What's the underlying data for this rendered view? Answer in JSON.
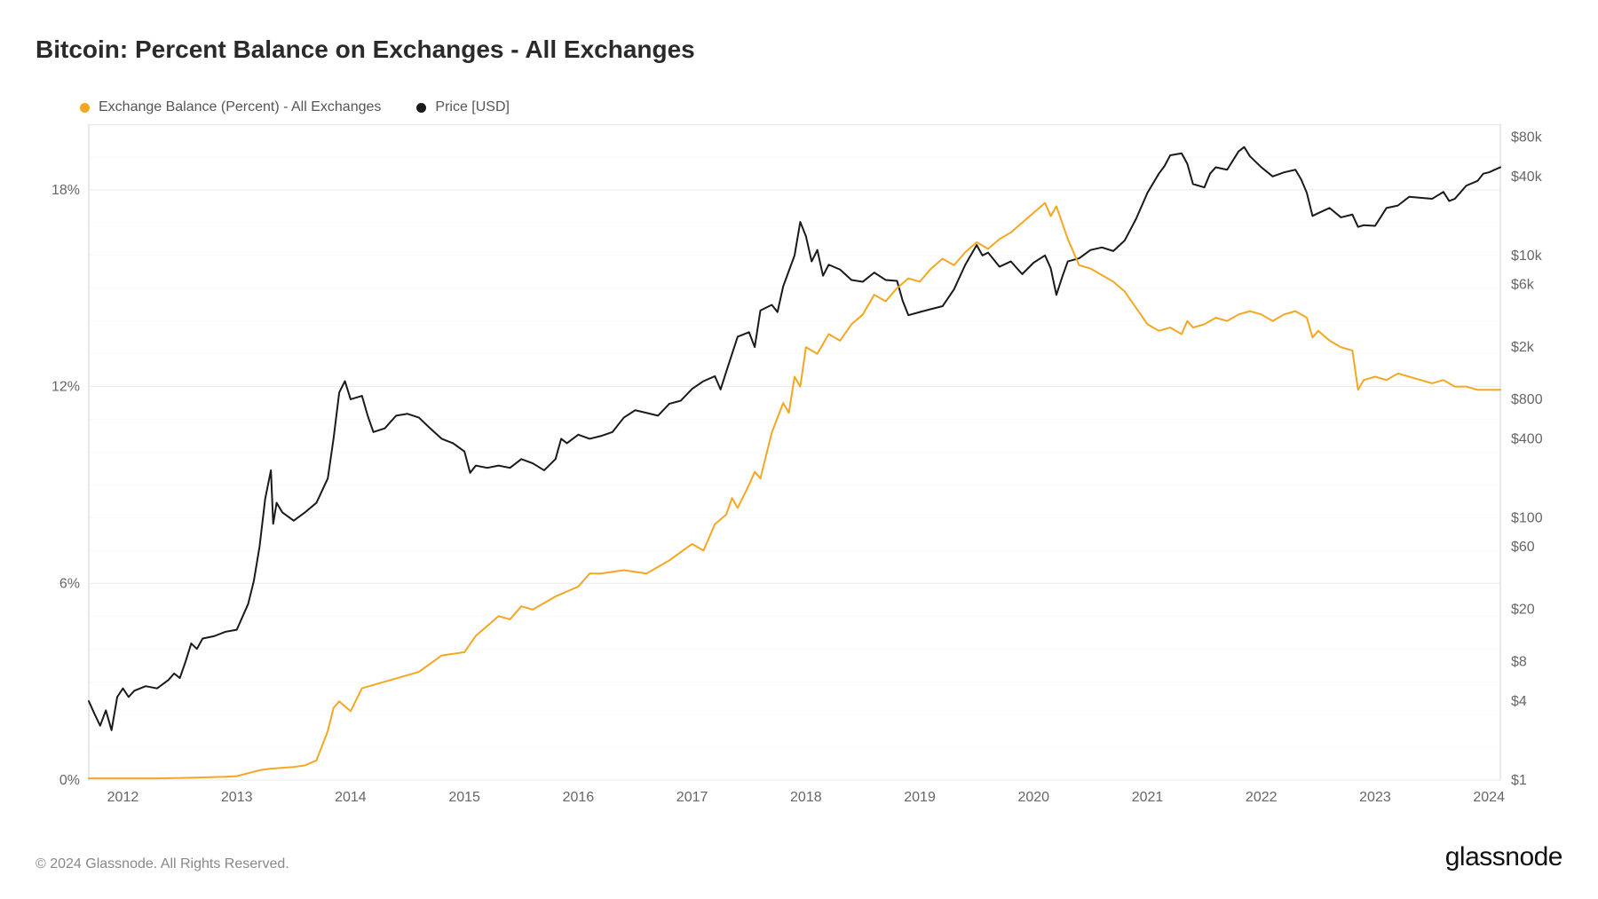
{
  "title": "Bitcoin: Percent Balance on Exchanges - All Exchanges",
  "copyright": "© 2024 Glassnode. All Rights Reserved.",
  "brand": "glassnode",
  "legend": {
    "balance": {
      "label": "Exchange Balance (Percent) - All Exchanges",
      "color": "#f5a623"
    },
    "price": {
      "label": "Price [USD]",
      "color": "#1a1a1a"
    }
  },
  "chart": {
    "background": "#ffffff",
    "grid_color": "#eaeaea",
    "border_color": "#d0d0d0",
    "font_color": "#666",
    "line_width": 2,
    "x_axis": {
      "domain": [
        2011.7,
        2024.1
      ],
      "ticks": [
        2012,
        2013,
        2014,
        2015,
        2016,
        2017,
        2018,
        2019,
        2020,
        2021,
        2022,
        2023,
        2024
      ],
      "labels": [
        "2012",
        "2013",
        "2014",
        "2015",
        "2016",
        "2017",
        "2018",
        "2019",
        "2020",
        "2021",
        "2022",
        "2023",
        "2024"
      ]
    },
    "left_axis": {
      "scale": "linear",
      "domain": [
        0,
        20
      ],
      "ticks": [
        0,
        6,
        12,
        18
      ],
      "labels": [
        "0%",
        "6%",
        "12%",
        "18%"
      ]
    },
    "right_axis": {
      "scale": "log",
      "domain": [
        1,
        100000
      ],
      "ticks": [
        1,
        4,
        8,
        20,
        60,
        100,
        400,
        800,
        2000,
        6000,
        10000,
        40000,
        80000
      ],
      "labels": [
        "$1",
        "$4",
        "$8",
        "$20",
        "$60",
        "$100",
        "$400",
        "$800",
        "$2k",
        "$6k",
        "$10k",
        "$40k",
        "$80k"
      ]
    },
    "series": {
      "balance": {
        "color": "#f5a623",
        "points": [
          [
            2011.7,
            0.05
          ],
          [
            2012.0,
            0.05
          ],
          [
            2012.3,
            0.05
          ],
          [
            2012.6,
            0.07
          ],
          [
            2012.9,
            0.1
          ],
          [
            2013.0,
            0.12
          ],
          [
            2013.2,
            0.3
          ],
          [
            2013.3,
            0.35
          ],
          [
            2013.5,
            0.4
          ],
          [
            2013.6,
            0.45
          ],
          [
            2013.7,
            0.6
          ],
          [
            2013.8,
            1.5
          ],
          [
            2013.85,
            2.2
          ],
          [
            2013.9,
            2.4
          ],
          [
            2014.0,
            2.1
          ],
          [
            2014.1,
            2.8
          ],
          [
            2014.2,
            2.9
          ],
          [
            2014.4,
            3.1
          ],
          [
            2014.6,
            3.3
          ],
          [
            2014.8,
            3.8
          ],
          [
            2015.0,
            3.9
          ],
          [
            2015.1,
            4.4
          ],
          [
            2015.2,
            4.7
          ],
          [
            2015.3,
            5.0
          ],
          [
            2015.4,
            4.9
          ],
          [
            2015.5,
            5.3
          ],
          [
            2015.6,
            5.2
          ],
          [
            2015.8,
            5.6
          ],
          [
            2016.0,
            5.9
          ],
          [
            2016.1,
            6.3
          ],
          [
            2016.2,
            6.3
          ],
          [
            2016.4,
            6.4
          ],
          [
            2016.6,
            6.3
          ],
          [
            2016.8,
            6.7
          ],
          [
            2017.0,
            7.2
          ],
          [
            2017.1,
            7.0
          ],
          [
            2017.2,
            7.8
          ],
          [
            2017.3,
            8.1
          ],
          [
            2017.35,
            8.6
          ],
          [
            2017.4,
            8.3
          ],
          [
            2017.5,
            9.0
          ],
          [
            2017.55,
            9.4
          ],
          [
            2017.6,
            9.2
          ],
          [
            2017.7,
            10.6
          ],
          [
            2017.8,
            11.5
          ],
          [
            2017.85,
            11.2
          ],
          [
            2017.9,
            12.3
          ],
          [
            2017.95,
            12.0
          ],
          [
            2018.0,
            13.2
          ],
          [
            2018.1,
            13.0
          ],
          [
            2018.2,
            13.6
          ],
          [
            2018.3,
            13.4
          ],
          [
            2018.4,
            13.9
          ],
          [
            2018.5,
            14.2
          ],
          [
            2018.6,
            14.8
          ],
          [
            2018.7,
            14.6
          ],
          [
            2018.8,
            15.0
          ],
          [
            2018.9,
            15.3
          ],
          [
            2019.0,
            15.2
          ],
          [
            2019.1,
            15.6
          ],
          [
            2019.2,
            15.9
          ],
          [
            2019.3,
            15.7
          ],
          [
            2019.4,
            16.1
          ],
          [
            2019.5,
            16.4
          ],
          [
            2019.6,
            16.2
          ],
          [
            2019.7,
            16.5
          ],
          [
            2019.8,
            16.7
          ],
          [
            2019.9,
            17.0
          ],
          [
            2020.0,
            17.3
          ],
          [
            2020.1,
            17.6
          ],
          [
            2020.15,
            17.2
          ],
          [
            2020.2,
            17.5
          ],
          [
            2020.3,
            16.5
          ],
          [
            2020.4,
            15.7
          ],
          [
            2020.5,
            15.6
          ],
          [
            2020.6,
            15.4
          ],
          [
            2020.7,
            15.2
          ],
          [
            2020.8,
            14.9
          ],
          [
            2020.9,
            14.4
          ],
          [
            2021.0,
            13.9
          ],
          [
            2021.1,
            13.7
          ],
          [
            2021.2,
            13.8
          ],
          [
            2021.3,
            13.6
          ],
          [
            2021.35,
            14.0
          ],
          [
            2021.4,
            13.8
          ],
          [
            2021.5,
            13.9
          ],
          [
            2021.6,
            14.1
          ],
          [
            2021.7,
            14.0
          ],
          [
            2021.8,
            14.2
          ],
          [
            2021.9,
            14.3
          ],
          [
            2022.0,
            14.2
          ],
          [
            2022.1,
            14.0
          ],
          [
            2022.2,
            14.2
          ],
          [
            2022.3,
            14.3
          ],
          [
            2022.4,
            14.1
          ],
          [
            2022.45,
            13.5
          ],
          [
            2022.5,
            13.7
          ],
          [
            2022.6,
            13.4
          ],
          [
            2022.7,
            13.2
          ],
          [
            2022.8,
            13.1
          ],
          [
            2022.85,
            11.9
          ],
          [
            2022.9,
            12.2
          ],
          [
            2023.0,
            12.3
          ],
          [
            2023.1,
            12.2
          ],
          [
            2023.2,
            12.4
          ],
          [
            2023.3,
            12.3
          ],
          [
            2023.4,
            12.2
          ],
          [
            2023.5,
            12.1
          ],
          [
            2023.6,
            12.2
          ],
          [
            2023.7,
            12.0
          ],
          [
            2023.8,
            12.0
          ],
          [
            2023.9,
            11.9
          ],
          [
            2024.0,
            11.9
          ],
          [
            2024.1,
            11.9
          ]
        ]
      },
      "price": {
        "color": "#1a1a1a",
        "points": [
          [
            2011.7,
            4.0
          ],
          [
            2011.75,
            3.2
          ],
          [
            2011.8,
            2.6
          ],
          [
            2011.85,
            3.4
          ],
          [
            2011.9,
            2.4
          ],
          [
            2011.95,
            4.3
          ],
          [
            2012.0,
            5.0
          ],
          [
            2012.05,
            4.3
          ],
          [
            2012.1,
            4.8
          ],
          [
            2012.2,
            5.2
          ],
          [
            2012.3,
            5.0
          ],
          [
            2012.4,
            5.8
          ],
          [
            2012.45,
            6.5
          ],
          [
            2012.5,
            6.0
          ],
          [
            2012.55,
            8.0
          ],
          [
            2012.6,
            11.0
          ],
          [
            2012.65,
            10.0
          ],
          [
            2012.7,
            12.0
          ],
          [
            2012.8,
            12.5
          ],
          [
            2012.9,
            13.5
          ],
          [
            2013.0,
            14.0
          ],
          [
            2013.1,
            22.0
          ],
          [
            2013.15,
            33.0
          ],
          [
            2013.2,
            60.0
          ],
          [
            2013.25,
            140.0
          ],
          [
            2013.3,
            230.0
          ],
          [
            2013.32,
            90.0
          ],
          [
            2013.35,
            130.0
          ],
          [
            2013.4,
            110.0
          ],
          [
            2013.5,
            95.0
          ],
          [
            2013.6,
            110.0
          ],
          [
            2013.7,
            130.0
          ],
          [
            2013.8,
            200.0
          ],
          [
            2013.85,
            400.0
          ],
          [
            2013.9,
            900.0
          ],
          [
            2013.95,
            1100.0
          ],
          [
            2014.0,
            800.0
          ],
          [
            2014.1,
            850.0
          ],
          [
            2014.15,
            600.0
          ],
          [
            2014.2,
            450.0
          ],
          [
            2014.3,
            480.0
          ],
          [
            2014.4,
            600.0
          ],
          [
            2014.5,
            620.0
          ],
          [
            2014.6,
            580.0
          ],
          [
            2014.7,
            480.0
          ],
          [
            2014.8,
            400.0
          ],
          [
            2014.9,
            370.0
          ],
          [
            2015.0,
            320.0
          ],
          [
            2015.05,
            220.0
          ],
          [
            2015.1,
            250.0
          ],
          [
            2015.2,
            240.0
          ],
          [
            2015.3,
            250.0
          ],
          [
            2015.4,
            240.0
          ],
          [
            2015.5,
            280.0
          ],
          [
            2015.6,
            260.0
          ],
          [
            2015.7,
            230.0
          ],
          [
            2015.8,
            280.0
          ],
          [
            2015.85,
            400.0
          ],
          [
            2015.9,
            370.0
          ],
          [
            2016.0,
            430.0
          ],
          [
            2016.1,
            400.0
          ],
          [
            2016.2,
            420.0
          ],
          [
            2016.3,
            450.0
          ],
          [
            2016.4,
            580.0
          ],
          [
            2016.5,
            660.0
          ],
          [
            2016.6,
            630.0
          ],
          [
            2016.7,
            600.0
          ],
          [
            2016.8,
            740.0
          ],
          [
            2016.9,
            780.0
          ],
          [
            2017.0,
            960.0
          ],
          [
            2017.1,
            1100.0
          ],
          [
            2017.2,
            1200.0
          ],
          [
            2017.25,
            950.0
          ],
          [
            2017.3,
            1300.0
          ],
          [
            2017.4,
            2400.0
          ],
          [
            2017.5,
            2600.0
          ],
          [
            2017.55,
            2000.0
          ],
          [
            2017.6,
            3800.0
          ],
          [
            2017.7,
            4200.0
          ],
          [
            2017.75,
            3700.0
          ],
          [
            2017.8,
            5800.0
          ],
          [
            2017.9,
            10000.0
          ],
          [
            2017.95,
            18000.0
          ],
          [
            2018.0,
            14000.0
          ],
          [
            2018.05,
            9000.0
          ],
          [
            2018.1,
            11000.0
          ],
          [
            2018.15,
            7000.0
          ],
          [
            2018.2,
            8500.0
          ],
          [
            2018.3,
            7800.0
          ],
          [
            2018.4,
            6500.0
          ],
          [
            2018.5,
            6300.0
          ],
          [
            2018.6,
            7400.0
          ],
          [
            2018.7,
            6500.0
          ],
          [
            2018.8,
            6400.0
          ],
          [
            2018.85,
            4500.0
          ],
          [
            2018.9,
            3500.0
          ],
          [
            2019.0,
            3700.0
          ],
          [
            2019.1,
            3900.0
          ],
          [
            2019.2,
            4100.0
          ],
          [
            2019.3,
            5500.0
          ],
          [
            2019.4,
            8500.0
          ],
          [
            2019.5,
            12000.0
          ],
          [
            2019.55,
            10000.0
          ],
          [
            2019.6,
            10500.0
          ],
          [
            2019.7,
            8200.0
          ],
          [
            2019.8,
            9000.0
          ],
          [
            2019.9,
            7200.0
          ],
          [
            2020.0,
            8800.0
          ],
          [
            2020.1,
            10000.0
          ],
          [
            2020.15,
            8000.0
          ],
          [
            2020.2,
            5000.0
          ],
          [
            2020.25,
            6800.0
          ],
          [
            2020.3,
            9000.0
          ],
          [
            2020.4,
            9500.0
          ],
          [
            2020.5,
            11000.0
          ],
          [
            2020.6,
            11500.0
          ],
          [
            2020.7,
            10800.0
          ],
          [
            2020.8,
            13000.0
          ],
          [
            2020.9,
            19000.0
          ],
          [
            2021.0,
            30000.0
          ],
          [
            2021.1,
            42000.0
          ],
          [
            2021.15,
            48000.0
          ],
          [
            2021.2,
            58000.0
          ],
          [
            2021.3,
            60000.0
          ],
          [
            2021.35,
            50000.0
          ],
          [
            2021.4,
            35000.0
          ],
          [
            2021.5,
            33000.0
          ],
          [
            2021.55,
            42000.0
          ],
          [
            2021.6,
            47000.0
          ],
          [
            2021.7,
            45000.0
          ],
          [
            2021.8,
            62000.0
          ],
          [
            2021.85,
            67000.0
          ],
          [
            2021.9,
            57000.0
          ],
          [
            2022.0,
            47000.0
          ],
          [
            2022.1,
            40000.0
          ],
          [
            2022.2,
            43000.0
          ],
          [
            2022.3,
            45000.0
          ],
          [
            2022.35,
            38000.0
          ],
          [
            2022.4,
            30000.0
          ],
          [
            2022.45,
            20000.0
          ],
          [
            2022.5,
            21000.0
          ],
          [
            2022.6,
            23000.0
          ],
          [
            2022.7,
            19500.0
          ],
          [
            2022.8,
            20500.0
          ],
          [
            2022.85,
            16500.0
          ],
          [
            2022.9,
            17000.0
          ],
          [
            2023.0,
            16800.0
          ],
          [
            2023.1,
            23000.0
          ],
          [
            2023.2,
            24000.0
          ],
          [
            2023.3,
            28000.0
          ],
          [
            2023.4,
            27500.0
          ],
          [
            2023.5,
            27000.0
          ],
          [
            2023.6,
            30500.0
          ],
          [
            2023.65,
            26000.0
          ],
          [
            2023.7,
            27000.0
          ],
          [
            2023.8,
            34000.0
          ],
          [
            2023.9,
            37000.0
          ],
          [
            2023.95,
            42000.0
          ],
          [
            2024.0,
            43000.0
          ],
          [
            2024.1,
            47000.0
          ]
        ]
      }
    }
  }
}
